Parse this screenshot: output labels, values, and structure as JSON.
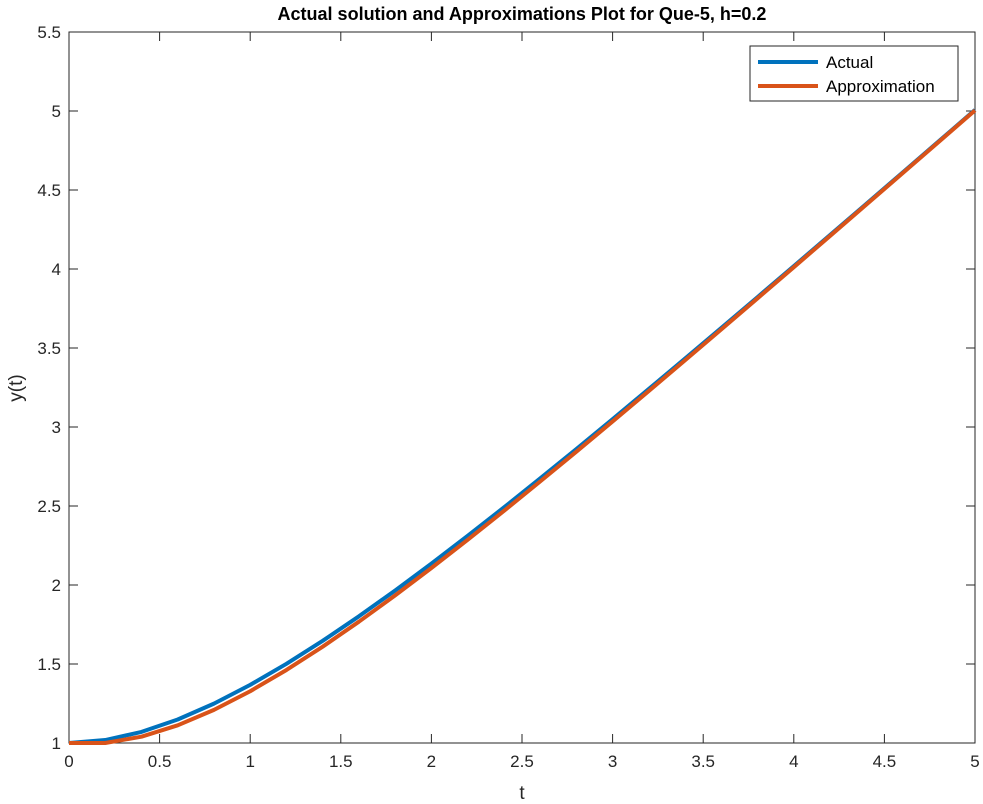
{
  "chart_data": {
    "type": "line",
    "title": "Actual solution and Approximations Plot for Que-5, h=0.2",
    "xlabel": "t",
    "ylabel": "y(t)",
    "xlim": [
      0,
      5
    ],
    "ylim": [
      1,
      5.5
    ],
    "xticks": [
      "0",
      "0.5",
      "1",
      "1.5",
      "2",
      "2.5",
      "3",
      "3.5",
      "4",
      "4.5",
      "5"
    ],
    "yticks": [
      "1",
      "1.5",
      "2",
      "2.5",
      "3",
      "3.5",
      "4",
      "4.5",
      "5",
      "5.5"
    ],
    "grid": false,
    "legend_position": "top-right",
    "x": [
      0,
      0.2,
      0.4,
      0.6,
      0.8,
      1.0,
      1.2,
      1.4,
      1.6,
      1.8,
      2.0,
      2.2,
      2.4,
      2.6,
      2.8,
      3.0,
      3.2,
      3.4,
      3.6,
      3.8,
      4.0,
      4.2,
      4.4,
      4.6,
      4.8,
      5.0
    ],
    "series": [
      {
        "name": "Actual",
        "color": "#0072BD",
        "values": [
          1.0,
          1.0187,
          1.0703,
          1.1488,
          1.2493,
          1.3679,
          1.5012,
          1.6466,
          1.8019,
          1.9653,
          2.1353,
          2.3108,
          2.4907,
          2.6742,
          2.8608,
          3.0498,
          3.2407,
          3.4333,
          3.6272,
          3.8222,
          4.0183,
          4.215,
          4.4123,
          4.6101,
          4.8082,
          5.0067
        ]
      },
      {
        "name": "Approximation",
        "color": "#D95319",
        "values": [
          1.0,
          1.0,
          1.04,
          1.112,
          1.2096,
          1.3277,
          1.4621,
          1.6097,
          1.7678,
          1.9342,
          2.1074,
          2.2859,
          2.4687,
          2.655,
          2.844,
          3.0352,
          3.2281,
          3.4225,
          3.618,
          3.8144,
          4.0115,
          4.2092,
          4.4074,
          4.6059,
          4.8047,
          5.0038
        ]
      }
    ]
  }
}
